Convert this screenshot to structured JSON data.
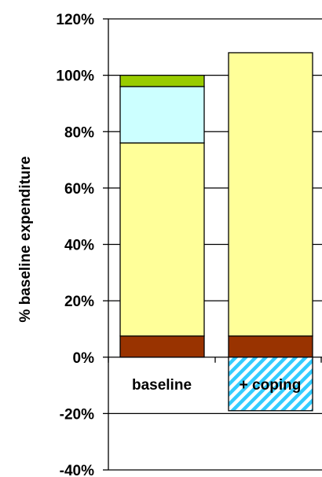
{
  "chart_data": {
    "type": "bar",
    "stacked": true,
    "ylabel": "% baseline expenditure",
    "ylim": [
      -40,
      120
    ],
    "yticks": [
      "120%",
      "100%",
      "80%",
      "60%",
      "40%",
      "20%",
      "0%",
      "-20%",
      "-40%"
    ],
    "ytick_values": [
      120,
      100,
      80,
      60,
      40,
      20,
      0,
      -20,
      -40
    ],
    "categories": [
      "baseline",
      "+ coping"
    ],
    "grid": true,
    "legend": "none",
    "series": [
      {
        "color": "#993300",
        "values": [
          7.5,
          7.5
        ]
      },
      {
        "color": "#FFFF99",
        "values": [
          68.5,
          100.5
        ]
      },
      {
        "color": "#CCFFFF",
        "values": [
          20,
          0
        ]
      },
      {
        "color": "#99CC00",
        "values": [
          4,
          0
        ]
      },
      {
        "color": "#33CCFF",
        "pattern": "diagonal-hatch",
        "values": [
          0,
          -19
        ]
      }
    ]
  }
}
